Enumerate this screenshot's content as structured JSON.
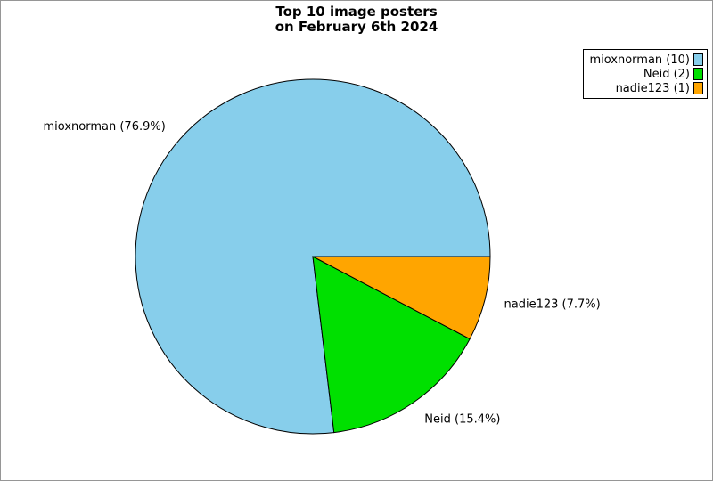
{
  "title": {
    "line1": "Top 10 image posters",
    "line2": "on February 6th 2024"
  },
  "chart_data": {
    "type": "pie",
    "title": "Top 10 image posters on February 6th 2024",
    "slices": [
      {
        "label": "mioxnorman",
        "count": 10,
        "pct": 76.9,
        "slice_label": "mioxnorman (76.9%)",
        "legend_label": "mioxnorman (10)",
        "color": "#87CEEB"
      },
      {
        "label": "Neid",
        "count": 2,
        "pct": 15.4,
        "slice_label": "Neid (15.4%)",
        "legend_label": "Neid (2)",
        "color": "#00E000"
      },
      {
        "label": "nadie123",
        "count": 1,
        "pct": 7.7,
        "slice_label": "nadie123 (7.7%)",
        "legend_label": "nadie123 (1)",
        "color": "#FFA500"
      }
    ],
    "start_angle_deg": 0,
    "direction": "counterclockwise",
    "legend_position": "top-right",
    "slice_border_color": "#000000",
    "frame_border_color": "#969696",
    "background_color": "#FFFFFF"
  }
}
